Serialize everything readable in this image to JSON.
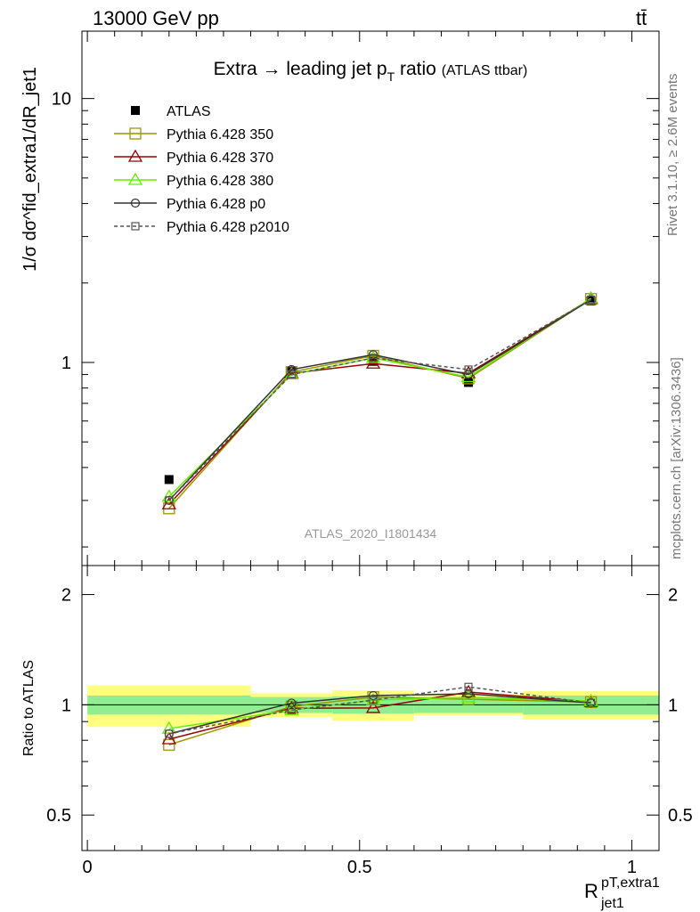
{
  "header": {
    "energy_label": "13000 GeV pp",
    "process_label": "tt̄"
  },
  "side_labels": {
    "rivet": "Rivet 3.1.10, ≥ 2.6M events",
    "mcplots": "mcplots.cern.ch [arXiv:1306.3436]"
  },
  "chart_data": {
    "type": "line",
    "title": "Extra → leading jet p_T ratio (ATLAS ttbar)",
    "title_main": "Extra → leading jet p",
    "title_sub": "T",
    "title_rest": "ratio",
    "title_small": "(ATLAS ttbar)",
    "analysis_label": "ATLAS_2020_I1801434",
    "xlabel": "R_jet1^pT,extra1",
    "xlabel_main": "R",
    "xlabel_sup": "pT,extra1",
    "xlabel_sub": "jet1",
    "ylabel": "1/σ dσ^fid_extra1/dR_jet1",
    "ratio_ylabel": "Ratio to ATLAS",
    "xlim": [
      -0.01,
      1.05
    ],
    "ylim": [
      0.17,
      18.0
    ],
    "yscale": "log",
    "ratio_ylim": [
      0.4,
      2.4
    ],
    "x_ticks": [
      0,
      0.5,
      1
    ],
    "x_tick_labels": [
      "0",
      "0.5",
      "1"
    ],
    "y_ticks": [
      1,
      10
    ],
    "y_tick_labels": [
      "1",
      "10"
    ],
    "ratio_ticks": [
      0.5,
      1,
      2
    ],
    "ratio_tick_labels": [
      "0.5",
      "1",
      "2"
    ],
    "legend_position": "top-left",
    "bins": [
      [
        0.0,
        0.3
      ],
      [
        0.3,
        0.45
      ],
      [
        0.45,
        0.6
      ],
      [
        0.6,
        0.8
      ],
      [
        0.8,
        1.05
      ]
    ],
    "x": [
      0.15,
      0.375,
      0.525,
      0.7,
      0.925
    ],
    "band_inner": [
      0.06,
      0.05,
      0.055,
      0.05,
      0.06
    ],
    "band_outer": [
      0.13,
      0.075,
      0.095,
      0.065,
      0.09
    ],
    "series": [
      {
        "name": "ATLAS",
        "values": [
          0.36,
          0.93,
          1.01,
          0.84,
          1.71
        ],
        "color": "#000000",
        "marker": "filled-square",
        "dash": false,
        "line": false
      },
      {
        "name": "Pythia 6.428 350",
        "values": [
          0.28,
          0.92,
          1.06,
          0.87,
          1.74
        ],
        "color": "#999900",
        "marker": "open-square",
        "dash": false,
        "line": true
      },
      {
        "name": "Pythia 6.428 370",
        "values": [
          0.29,
          0.91,
          0.99,
          0.91,
          1.74
        ],
        "color": "#990000",
        "marker": "open-triangle",
        "dash": false,
        "line": true
      },
      {
        "name": "Pythia 6.428 380",
        "values": [
          0.31,
          0.9,
          1.04,
          0.88,
          1.75
        ],
        "color": "#66ee00",
        "marker": "open-triangle",
        "dash": false,
        "line": true
      },
      {
        "name": "Pythia 6.428 p0",
        "values": [
          0.3,
          0.94,
          1.07,
          0.9,
          1.73
        ],
        "color": "#333333",
        "marker": "open-circle",
        "dash": false,
        "line": true
      },
      {
        "name": "Pythia 6.428 p2010",
        "values": [
          0.3,
          0.9,
          1.04,
          0.94,
          1.73
        ],
        "color": "#555555",
        "marker": "open-square-small",
        "dash": true,
        "line": true
      }
    ]
  },
  "colors": {
    "band_inner": "#90ee90",
    "band_outer": "#ffff80"
  }
}
